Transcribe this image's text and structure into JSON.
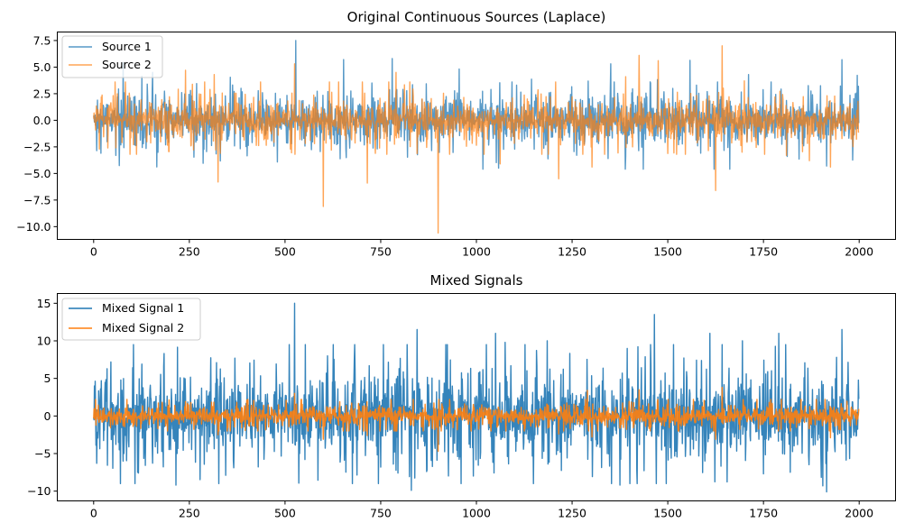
{
  "chart_data": [
    {
      "type": "line",
      "title": "Original Continuous Sources (Laplace)",
      "xlabel": "",
      "ylabel": "",
      "xlim": [
        -95,
        2095
      ],
      "ylim": [
        -11.2,
        8.3
      ],
      "xticks": [
        0,
        250,
        500,
        750,
        1000,
        1250,
        1500,
        1750,
        2000
      ],
      "yticks": [
        7.5,
        5.0,
        2.5,
        0.0,
        -2.5,
        -5.0,
        -7.5,
        -10.0
      ],
      "ytick_labels": [
        "7.5",
        "5.0",
        "2.5",
        "0.0",
        "−2.5",
        "−5.0",
        "−7.5",
        "−10.0"
      ],
      "legend": {
        "position": "top-left"
      },
      "n_points": 2000,
      "series": [
        {
          "name": "Source 1",
          "color": "#1f77b4",
          "opacity": 0.75,
          "noise_scale": 0.9,
          "clip": [
            -4.6,
            5.8
          ],
          "spikes": [
            [
              19,
              -3.1
            ],
            [
              62,
              2.2
            ],
            [
              95,
              2.1
            ],
            [
              230,
              2.6
            ],
            [
              385,
              3.0
            ],
            [
              528,
              7.5
            ],
            [
              612,
              2.7
            ],
            [
              790,
              2.5
            ],
            [
              1058,
              -4.5
            ],
            [
              1105,
              3.3
            ],
            [
              1360,
              3.6
            ],
            [
              1390,
              -3.4
            ],
            [
              1455,
              3.5
            ],
            [
              1575,
              3.3
            ],
            [
              1630,
              3.6
            ],
            [
              1770,
              3.6
            ],
            [
              1812,
              -3.4
            ],
            [
              1915,
              -4.3
            ],
            [
              1955,
              5.7
            ],
            [
              1990,
              2.5
            ]
          ]
        },
        {
          "name": "Source 2",
          "color": "#ff7f0e",
          "opacity": 0.7,
          "noise_scale": 0.75,
          "clip": [
            -3.2,
            3.6
          ],
          "spikes": [
            [
              240,
              4.7
            ],
            [
              315,
              4.3
            ],
            [
              325,
              -5.8
            ],
            [
              525,
              5.3
            ],
            [
              600,
              -8.1
            ],
            [
              715,
              -5.9
            ],
            [
              790,
              4.5
            ],
            [
              900,
              -10.6
            ],
            [
              1062,
              -4.1
            ],
            [
              1215,
              -5.5
            ],
            [
              1302,
              -4.4
            ],
            [
              1390,
              4.1
            ],
            [
              1425,
              6.1
            ],
            [
              1475,
              5.6
            ],
            [
              1625,
              -6.6
            ],
            [
              1642,
              7.0
            ],
            [
              1700,
              3.7
            ],
            [
              1810,
              -3.3
            ],
            [
              1870,
              -3.8
            ],
            [
              1925,
              -4.4
            ]
          ]
        }
      ]
    },
    {
      "type": "line",
      "title": "Mixed Signals",
      "xlabel": "",
      "ylabel": "",
      "xlim": [
        -95,
        2095
      ],
      "ylim": [
        -11.3,
        16.3
      ],
      "xticks": [
        0,
        250,
        500,
        750,
        1000,
        1250,
        1500,
        1750,
        2000
      ],
      "yticks": [
        15,
        10,
        5,
        0,
        -5,
        -10
      ],
      "ytick_labels": [
        "15",
        "10",
        "5",
        "0",
        "−5",
        "−10"
      ],
      "legend": {
        "position": "top-left"
      },
      "n_points": 2000,
      "series": [
        {
          "name": "Mixed Signal 1",
          "color": "#1f77b4",
          "opacity": 0.9,
          "noise_scale": 2.3,
          "clip": [
            -9.0,
            9.5
          ],
          "spikes": [
            [
              8,
              -6.3
            ],
            [
              70,
              -9.0
            ],
            [
              115,
              -7.5
            ],
            [
              215,
              -9.2
            ],
            [
              345,
              -7.9
            ],
            [
              525,
              15.0
            ],
            [
              795,
              -7.6
            ],
            [
              830,
              -9.9
            ],
            [
              845,
              11.5
            ],
            [
              870,
              -7.4
            ],
            [
              1050,
              11.0
            ],
            [
              1075,
              9.8
            ],
            [
              1185,
              10.0
            ],
            [
              1375,
              -9.2
            ],
            [
              1465,
              13.5
            ],
            [
              1610,
              11.0
            ],
            [
              1695,
              10.0
            ],
            [
              1750,
              -7.7
            ],
            [
              1790,
              11.0
            ],
            [
              1905,
              -9.3
            ],
            [
              1915,
              -10.1
            ],
            [
              1955,
              11.5
            ]
          ]
        },
        {
          "name": "Mixed Signal 2",
          "color": "#ff7f0e",
          "opacity": 0.9,
          "noise_scale": 0.55,
          "clip": [
            -2.0,
            2.2
          ],
          "spikes": [
            [
              5,
              2.2
            ],
            [
              325,
              -2.5
            ],
            [
              525,
              3.0
            ],
            [
              600,
              -3.1
            ],
            [
              715,
              -2.6
            ],
            [
              900,
              -4.7
            ],
            [
              1215,
              -2.4
            ],
            [
              1290,
              3.4
            ],
            [
              1302,
              -2.8
            ],
            [
              1425,
              3.5
            ],
            [
              1625,
              -3.1
            ],
            [
              1642,
              3.8
            ],
            [
              1925,
              -2.9
            ]
          ]
        }
      ]
    }
  ]
}
